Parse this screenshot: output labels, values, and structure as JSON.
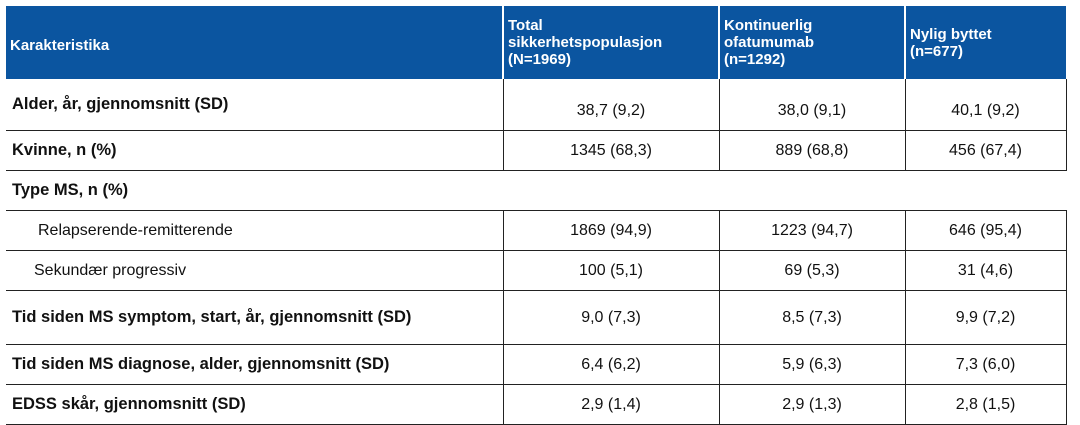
{
  "header": {
    "characteristic": "Karakteristika",
    "columns": [
      {
        "line1": "Total",
        "line2": "sikkerhetspopulasjon",
        "line3": "(N=1969)"
      },
      {
        "line1": "Kontinuerlig",
        "line2": "ofatumumab",
        "line3": "(n=1292)"
      },
      {
        "line1": "Nylig byttet",
        "line2": "(n=677)"
      }
    ]
  },
  "rows": [
    {
      "label": "Alder, år, gjennomsnitt (SD)",
      "values": [
        "38,7 (9,2)",
        "38,0 (9,1)",
        "40,1 (9,2)"
      ]
    },
    {
      "label": "Kvinne, n (%)",
      "values": [
        "1345 (68,3)",
        "889 (68,8)",
        "456 (67,4)"
      ]
    },
    {
      "label": "Type MS, n (%)"
    },
    {
      "label": "Relapserende-remitterende",
      "values": [
        "1869 (94,9)",
        "1223 (94,7)",
        "646 (95,4)"
      ]
    },
    {
      "label": "Sekundær progressiv",
      "values": [
        "100 (5,1)",
        "69 (5,3)",
        "31 (4,6)"
      ]
    },
    {
      "label": "Tid siden MS symptom, start, år, gjennomsnitt (SD)",
      "values": [
        "9,0 (7,3)",
        "8,5 (7,3)",
        "9,9 (7,2)"
      ]
    },
    {
      "label": "Tid siden MS diagnose, alder, gjennomsnitt (SD)",
      "values": [
        "6,4 (6,2)",
        "5,9 (6,3)",
        "7,3 (6,0)"
      ]
    },
    {
      "label": "EDSS skår, gjennomsnitt (SD)",
      "values": [
        "2,9 (1,4)",
        "2,9 (1,3)",
        "2,8 (1,5)"
      ]
    }
  ],
  "colors": {
    "header_bg": "#0b55a0",
    "header_text": "#ffffff"
  }
}
